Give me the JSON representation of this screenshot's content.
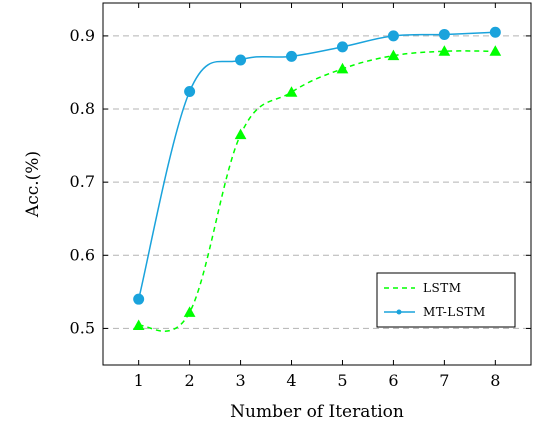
{
  "chart_data": {
    "type": "line",
    "xlabel": "Number of Iteration",
    "ylabel": "Acc.(%)",
    "xlim": [
      0.3,
      8.7
    ],
    "ylim": [
      0.45,
      0.945
    ],
    "x_ticks": [
      1,
      2,
      3,
      4,
      5,
      6,
      7,
      8
    ],
    "y_ticks": [
      0.5,
      0.6,
      0.7,
      0.8,
      0.9
    ],
    "y_tick_labels": [
      "0.5",
      "0.6",
      "0.7",
      "0.8",
      "0.9"
    ],
    "grid": "horizontal dashed",
    "legend_position": "bottom-right",
    "series": [
      {
        "name": "LSTM",
        "color": "#00ff00",
        "line_style": "dashed",
        "marker": "triangle",
        "x": [
          1,
          2,
          3,
          4,
          5,
          6,
          7,
          8
        ],
        "y": [
          0.504,
          0.522,
          0.765,
          0.823,
          0.855,
          0.873,
          0.879,
          0.879
        ]
      },
      {
        "name": "MT-LSTM",
        "color": "#1aa3dc",
        "line_style": "solid",
        "marker": "circle",
        "x": [
          1,
          2,
          3,
          4,
          5,
          6,
          7,
          8
        ],
        "y": [
          0.54,
          0.824,
          0.867,
          0.872,
          0.885,
          0.9,
          0.902,
          0.905
        ]
      }
    ]
  }
}
